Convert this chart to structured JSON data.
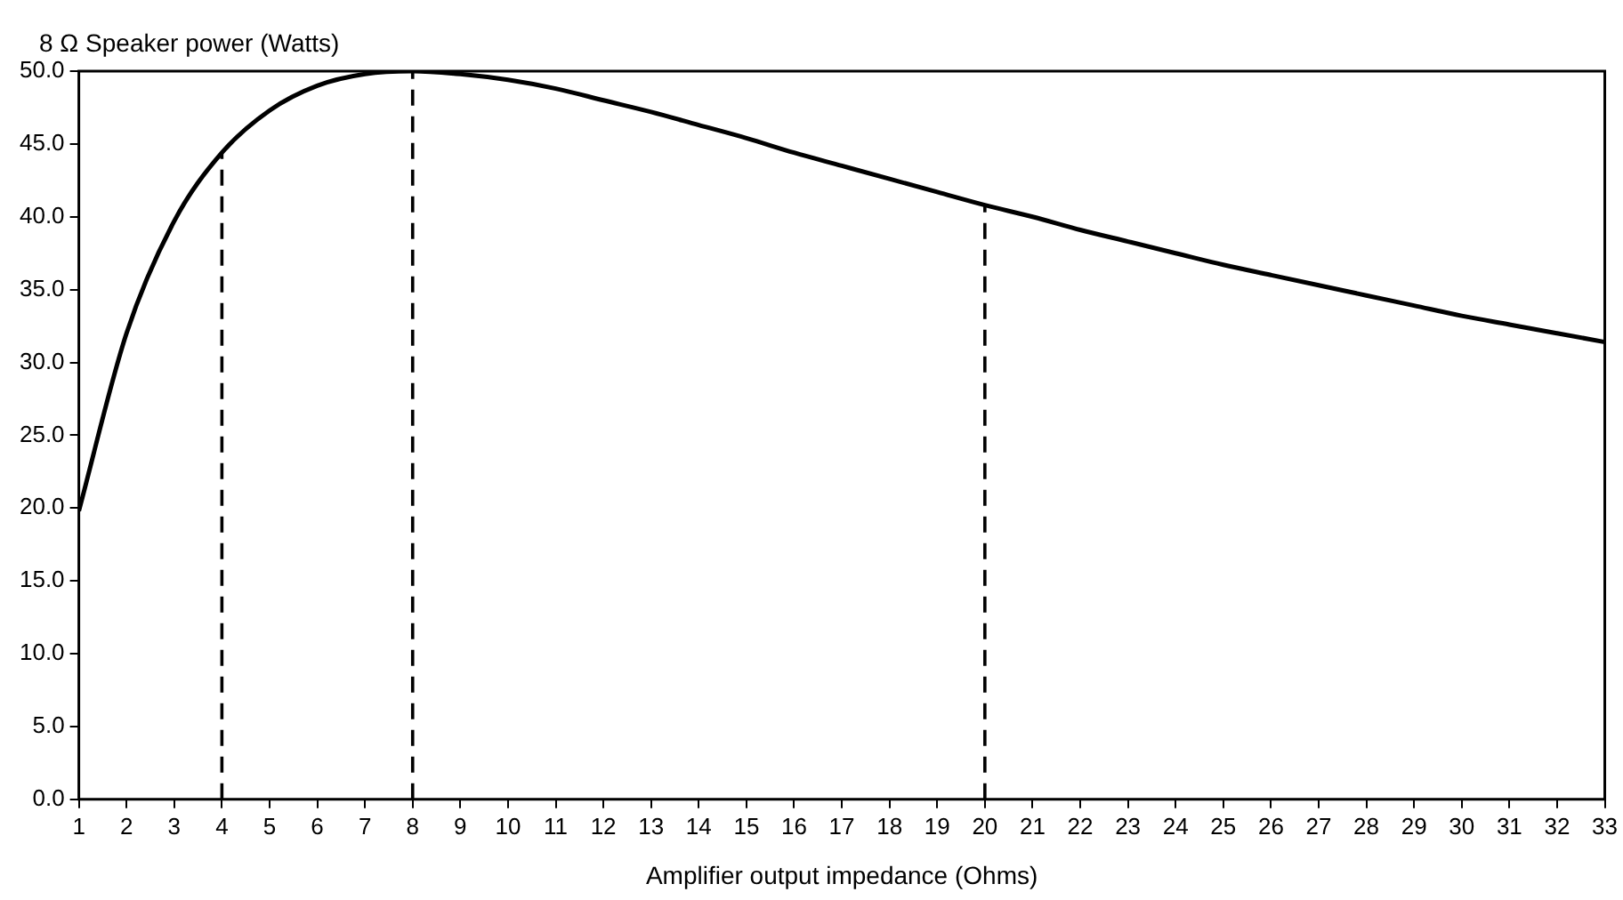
{
  "chart_data": {
    "type": "line",
    "ylabel": "8 Ω Speaker power (Watts)",
    "xlabel": "Amplifier output impedance (Ohms)",
    "x": [
      1,
      2,
      3,
      4,
      5,
      6,
      7,
      8,
      9,
      10,
      11,
      12,
      13,
      14,
      15,
      16,
      17,
      18,
      19,
      20,
      21,
      22,
      23,
      24,
      25,
      26,
      27,
      28,
      29,
      30,
      31,
      32,
      33
    ],
    "series": [
      {
        "color": "#000000",
        "values": [
          19.8,
          32.0,
          39.7,
          44.4,
          47.3,
          49.0,
          49.8,
          50.0,
          49.8,
          49.4,
          48.8,
          48.0,
          47.2,
          46.3,
          45.4,
          44.4,
          43.5,
          42.6,
          41.7,
          40.8,
          40.0,
          39.1,
          38.3,
          37.5,
          36.7,
          36.0,
          35.3,
          34.6,
          33.9,
          33.2,
          32.6,
          32.0,
          31.4
        ]
      }
    ],
    "xlim": [
      1,
      33
    ],
    "xticks": [
      1,
      2,
      3,
      4,
      5,
      6,
      7,
      8,
      9,
      10,
      11,
      12,
      13,
      14,
      15,
      16,
      17,
      18,
      19,
      20,
      21,
      22,
      23,
      24,
      25,
      26,
      27,
      28,
      29,
      30,
      31,
      32,
      33
    ],
    "ylim": [
      0,
      50
    ],
    "yticks": [
      {
        "value": 0,
        "label": "0.0"
      },
      {
        "value": 5,
        "label": "5.0"
      },
      {
        "value": 10,
        "label": "10.0"
      },
      {
        "value": 15,
        "label": "15.0"
      },
      {
        "value": 20,
        "label": "20.0"
      },
      {
        "value": 25,
        "label": "25.0"
      },
      {
        "value": 30,
        "label": "30.0"
      },
      {
        "value": 35,
        "label": "35.0"
      },
      {
        "value": 40,
        "label": "40.0"
      },
      {
        "value": 45,
        "label": "45.0"
      },
      {
        "value": 50,
        "label": "50.0"
      }
    ],
    "ref_lines": [
      {
        "axis": "x",
        "value": 4,
        "line_style": "dashed"
      },
      {
        "axis": "x",
        "value": 8,
        "line_style": "dashed"
      },
      {
        "axis": "x",
        "value": 20,
        "line_style": "dashed"
      }
    ],
    "grid": false,
    "legend": false,
    "marker": "none",
    "line_style": "solid"
  }
}
